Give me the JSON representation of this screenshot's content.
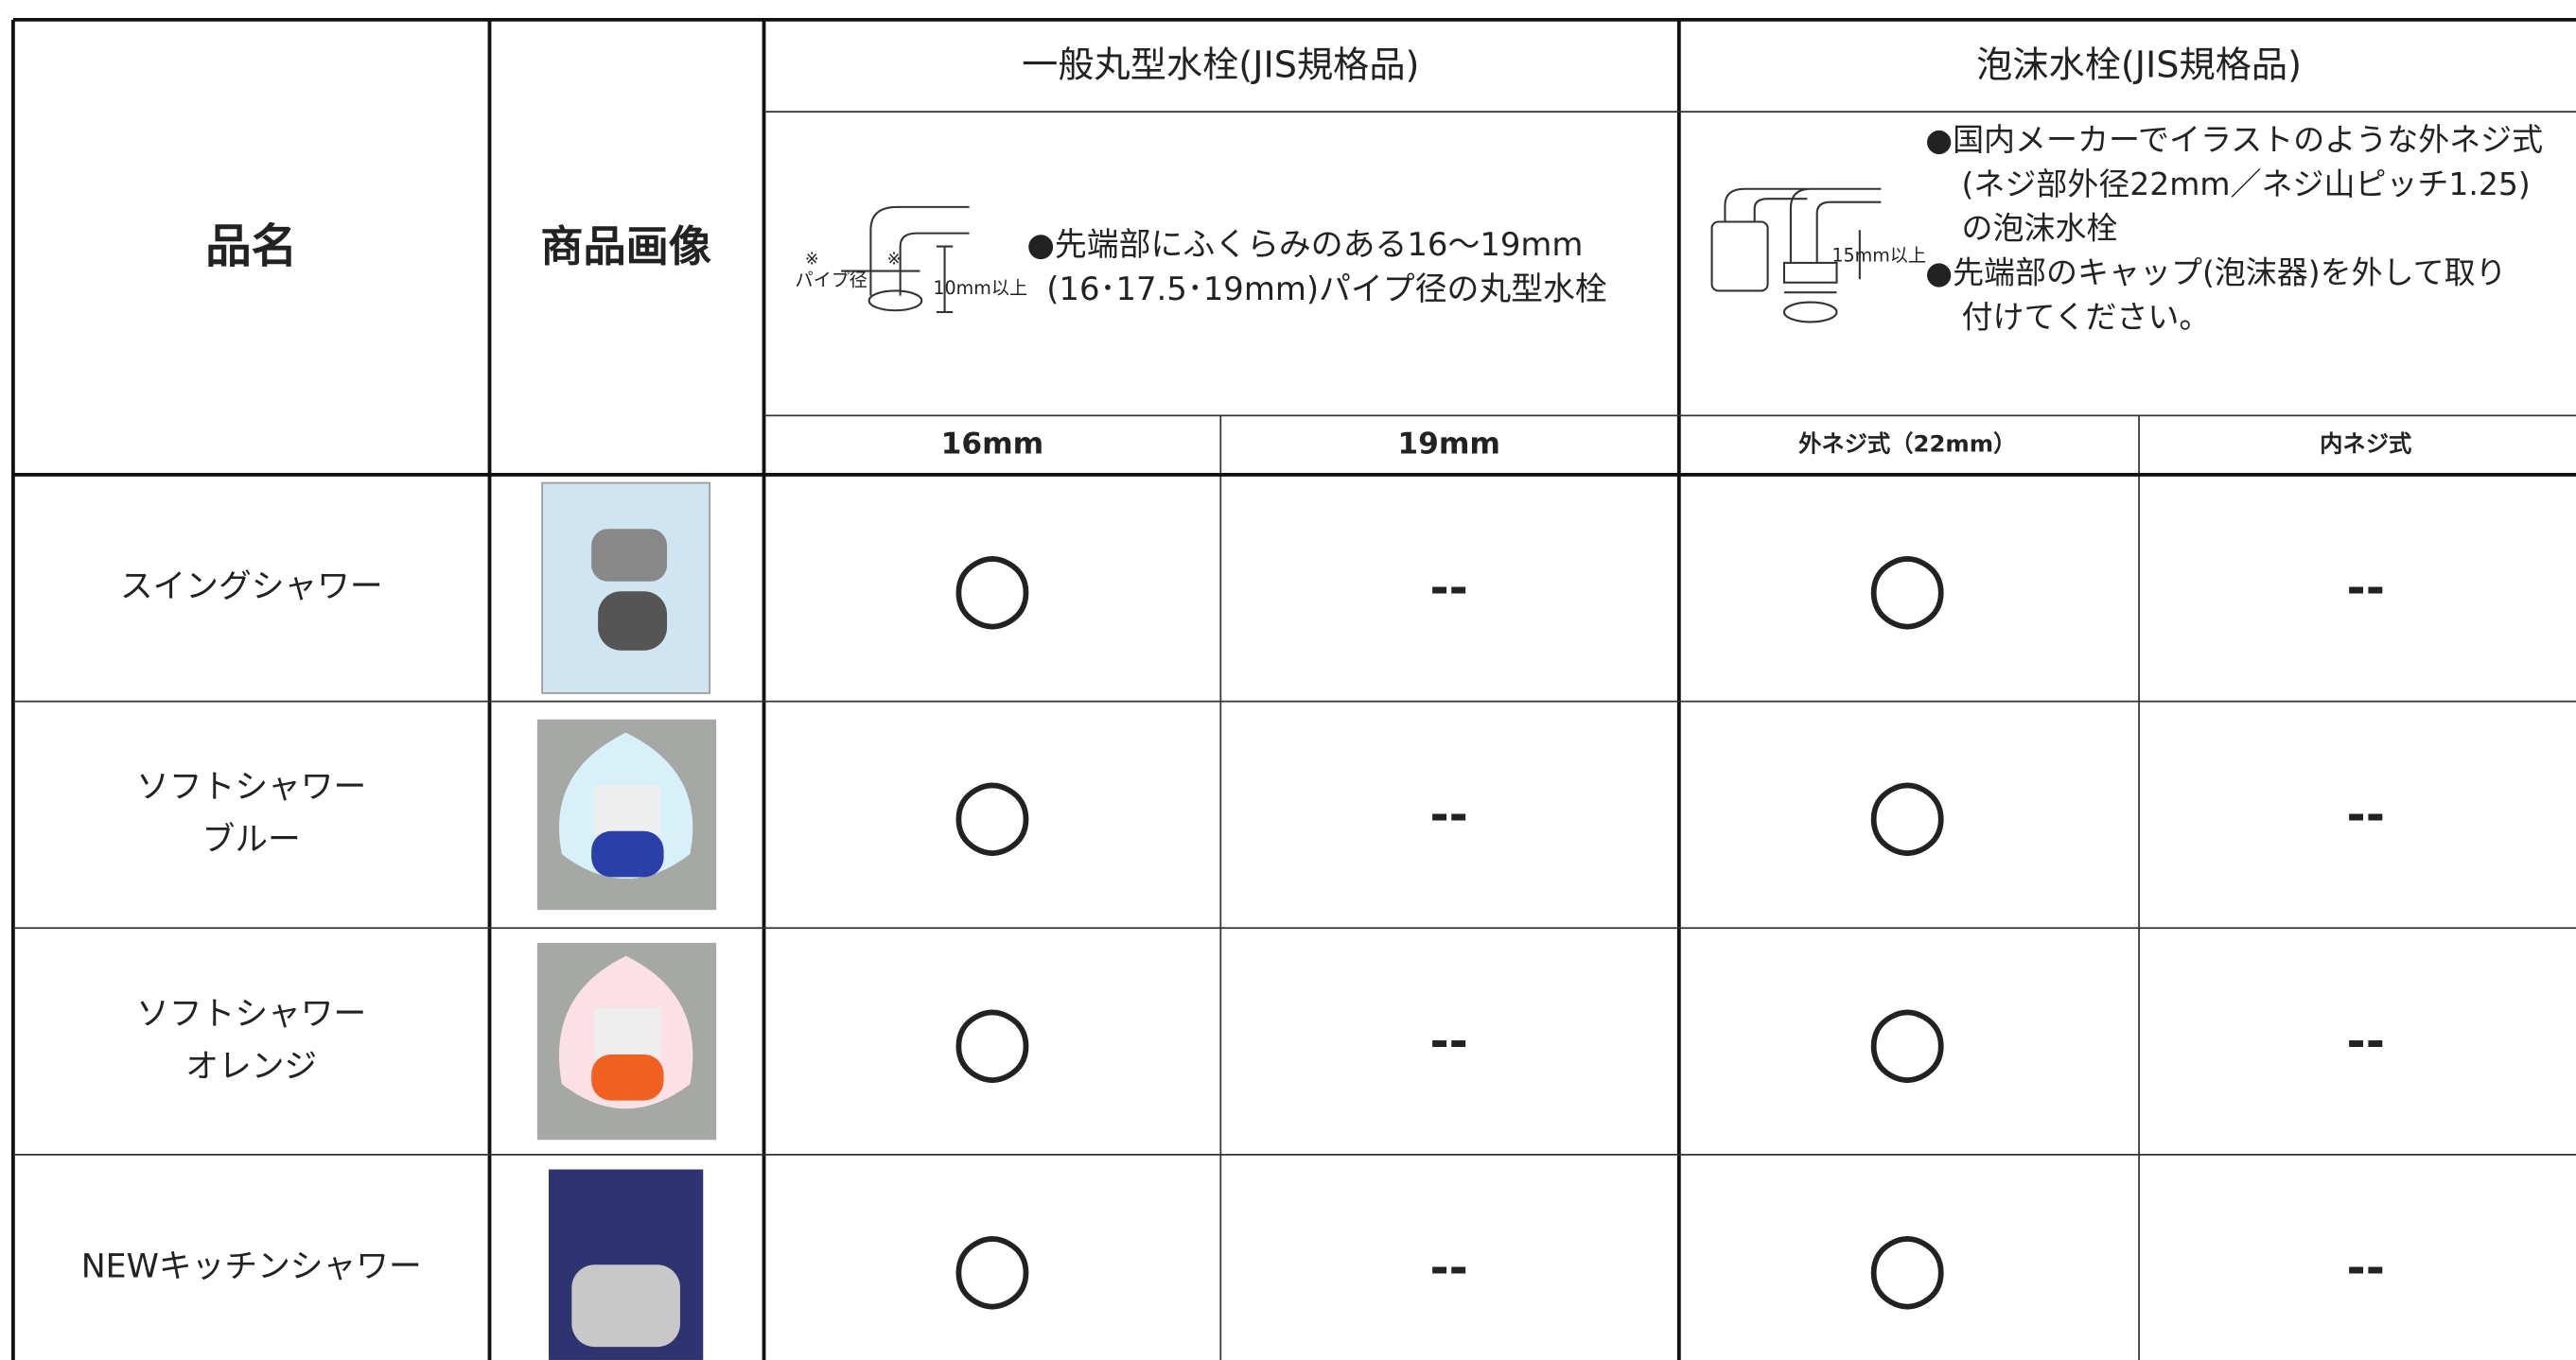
{
  "table": {
    "headers": {
      "name": "品名",
      "image": "商品画像",
      "group1": "一般丸型水栓(JIS規格品)",
      "group2": "泡沫水栓(JIS規格品)"
    },
    "descriptions": {
      "group1": [
        "●先端部にふくらみのある16～19mm",
        "(16･17.5･19mm)パイプ径の丸型水栓"
      ],
      "group2": [
        "●国内メーカーでイラストのような外ネジ式",
        "(ネジ部外径22mm／ネジ山ピッチ1.25)",
        "の泡沫水栓",
        "●先端部のキャップ(泡沫器)を外して取り",
        "付けてください。"
      ]
    },
    "diagram_labels": {
      "group1": [
        "※",
        "※",
        "パイプ径",
        "10mm以上"
      ],
      "group2": [
        "15mm以上"
      ]
    },
    "subheaders": [
      "16mm",
      "19mm",
      "外ネジ式（22mm）",
      "内ネジ式"
    ],
    "rows": [
      {
        "name": [
          "スイングシャワー"
        ],
        "marks": [
          "○",
          "--",
          "○",
          "--"
        ]
      },
      {
        "name": [
          "ソフトシャワー",
          "ブルー"
        ],
        "marks": [
          "○",
          "--",
          "○",
          "--"
        ]
      },
      {
        "name": [
          "ソフトシャワー",
          "オレンジ"
        ],
        "marks": [
          "○",
          "--",
          "○",
          "--"
        ]
      },
      {
        "name": [
          "NEWキッチンシャワー"
        ],
        "marks": [
          "○",
          "--",
          "○",
          "--"
        ]
      }
    ]
  }
}
